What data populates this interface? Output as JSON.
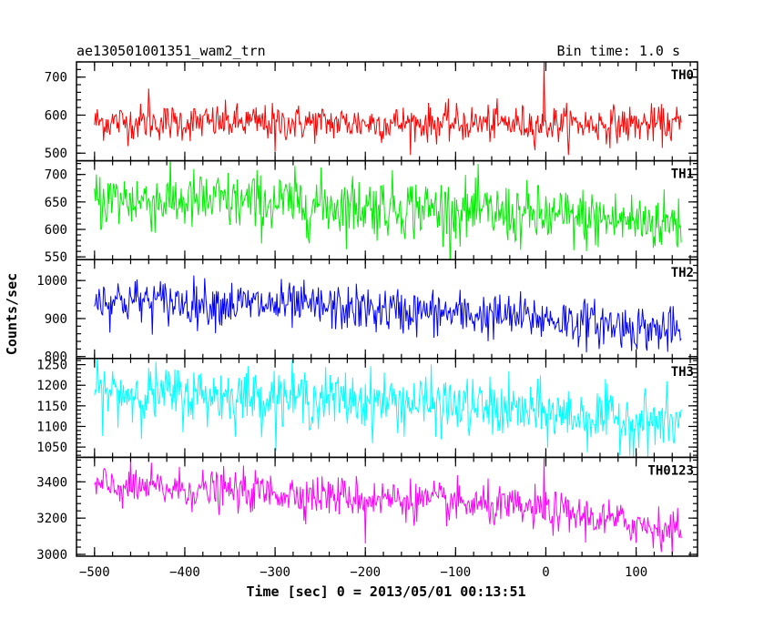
{
  "chart_data": {
    "type": "line",
    "title": "ae130501001351_wam2_trn",
    "subtitle": "Bin time: 1.0 s",
    "xlabel": "Time [sec] 0 = 2013/05/01 00:13:51",
    "ylabel": "Counts/sec",
    "xlim": [
      -520,
      168
    ],
    "x_range": [
      -500,
      150
    ],
    "x_step": 1.0,
    "xticks": [
      -500,
      -400,
      -300,
      -200,
      -100,
      0,
      100
    ],
    "xtick_labels": [
      "−500",
      "−400",
      "−300",
      "−200",
      "−100",
      "0",
      "100"
    ],
    "panels": [
      {
        "name": "TH0",
        "color": "#ff0000",
        "ylim": [
          480,
          740
        ],
        "yticks": [
          500,
          600,
          700
        ],
        "ytick_labels": [
          "500",
          "600",
          "700"
        ],
        "trend": [
          [
            -500,
            582
          ],
          [
            -300,
            580
          ],
          [
            -100,
            578
          ],
          [
            150,
            575
          ]
        ],
        "noise": 24,
        "spikes": [
          [
            -440,
            670
          ],
          [
            -2,
            740
          ],
          [
            -300,
            505
          ]
        ]
      },
      {
        "name": "TH1",
        "color": "#00ee00",
        "ylim": [
          545,
          725
        ],
        "yticks": [
          550,
          600,
          650,
          700
        ],
        "ytick_labels": [
          "550",
          "600",
          "650",
          "700"
        ],
        "trend": [
          [
            -500,
            655
          ],
          [
            -300,
            648
          ],
          [
            -150,
            640
          ],
          [
            0,
            622
          ],
          [
            150,
            612
          ]
        ],
        "noise": 28,
        "spikes": []
      },
      {
        "name": "TH2",
        "color": "#0000ff",
        "ylim": [
          795,
          1055
        ],
        "yticks": [
          800,
          900,
          1000
        ],
        "ytick_labels": [
          "800",
          "900",
          "1000"
        ],
        "trend": [
          [
            -500,
            950
          ],
          [
            -300,
            935
          ],
          [
            -150,
            918
          ],
          [
            0,
            900
          ],
          [
            150,
            865
          ]
        ],
        "noise": 30,
        "spikes": []
      },
      {
        "name": "TH3",
        "color": "#00ffff",
        "ylim": [
          1025,
          1265
        ],
        "yticks": [
          1050,
          1100,
          1150,
          1200,
          1250
        ],
        "ytick_labels": [
          "1050",
          "1100",
          "1150",
          "1200",
          "1250"
        ],
        "trend": [
          [
            -500,
            1182
          ],
          [
            -300,
            1172
          ],
          [
            -150,
            1158
          ],
          [
            0,
            1132
          ],
          [
            150,
            1105
          ]
        ],
        "noise": 35,
        "spikes": []
      },
      {
        "name": "TH0123",
        "color": "#ff00ff",
        "ylim": [
          2990,
          3535
        ],
        "yticks": [
          3000,
          3200,
          3400
        ],
        "ytick_labels": [
          "3000",
          "3200",
          "3400"
        ],
        "trend": [
          [
            -500,
            3375
          ],
          [
            -300,
            3340
          ],
          [
            -150,
            3300
          ],
          [
            0,
            3240
          ],
          [
            150,
            3130
          ]
        ],
        "noise": 55,
        "spikes": [
          [
            -2,
            3530
          ],
          [
            -200,
            3060
          ]
        ]
      }
    ]
  }
}
